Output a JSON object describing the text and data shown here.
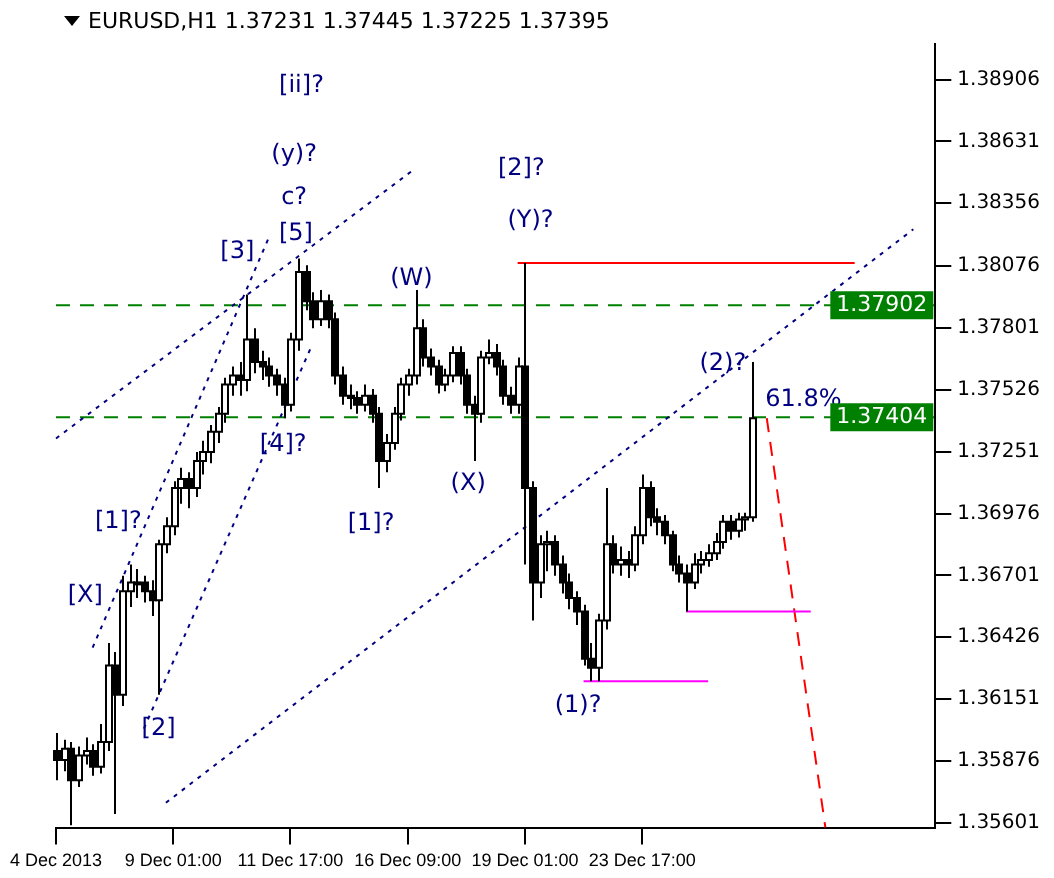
{
  "chart_data": {
    "type": "candlestick",
    "title": "EURUSD,H1 1.37231 1.37445 1.37225 1.37395",
    "categories": [
      "4 Dec 2013",
      null,
      null,
      null,
      null,
      null,
      null,
      null,
      null,
      null,
      null,
      null,
      null,
      null,
      null,
      null,
      "9 Dec 01:00",
      null,
      null,
      null,
      null,
      null,
      null,
      null,
      null,
      null,
      null,
      null,
      null,
      null,
      null,
      null,
      "11 Dec 17:00",
      null,
      null,
      null,
      null,
      null,
      null,
      null,
      null,
      null,
      null,
      null,
      null,
      null,
      null,
      null,
      "16 Dec 09:00",
      null,
      null,
      null,
      null,
      null,
      null,
      null,
      null,
      null,
      null,
      null,
      null,
      null,
      null,
      null,
      "19 Dec 01:00",
      null,
      null,
      null,
      null,
      null,
      null,
      null,
      null,
      null,
      null,
      null,
      null,
      null,
      null,
      null,
      "23 Dec 17:00",
      null,
      null,
      null,
      null,
      null,
      null,
      null,
      null,
      null,
      null,
      null,
      null,
      null,
      null,
      null,
      null,
      null,
      null,
      null,
      null,
      null,
      null,
      null,
      null,
      null,
      null,
      null,
      null,
      null,
      null,
      null,
      null,
      null,
      null,
      null,
      null,
      null,
      null,
      null,
      null
    ],
    "ohlc": [
      [
        1.3592,
        1.36,
        1.3579,
        1.3588
      ],
      [
        1.3588,
        1.3597,
        1.3583,
        1.3593
      ],
      [
        1.3593,
        1.3596,
        1.3559,
        1.3579
      ],
      [
        1.3579,
        1.3594,
        1.3576,
        1.359
      ],
      [
        1.359,
        1.3598,
        1.3586,
        1.3592
      ],
      [
        1.3592,
        1.3595,
        1.3581,
        1.3585
      ],
      [
        1.3585,
        1.3604,
        1.3582,
        1.3596
      ],
      [
        1.3596,
        1.364,
        1.3592,
        1.363
      ],
      [
        1.363,
        1.3636,
        1.3564,
        1.3617
      ],
      [
        1.3617,
        1.367,
        1.3612,
        1.3663
      ],
      [
        1.3663,
        1.3675,
        1.3656,
        1.3667
      ],
      [
        1.3667,
        1.3673,
        1.366,
        1.3667
      ],
      [
        1.3667,
        1.367,
        1.3658,
        1.3663
      ],
      [
        1.3663,
        1.3668,
        1.3652,
        1.3659
      ],
      [
        1.3659,
        1.3686,
        1.3617,
        1.3684
      ],
      [
        1.3684,
        1.3696,
        1.368,
        1.3692
      ],
      [
        1.3692,
        1.3712,
        1.3688,
        1.3709
      ],
      [
        1.3709,
        1.3718,
        1.3702,
        1.3713
      ],
      [
        1.3713,
        1.3716,
        1.37,
        1.3709
      ],
      [
        1.3709,
        1.3725,
        1.3705,
        1.3721
      ],
      [
        1.3721,
        1.373,
        1.3715,
        1.3725
      ],
      [
        1.3725,
        1.3737,
        1.372,
        1.3734
      ],
      [
        1.3734,
        1.3745,
        1.3729,
        1.3742
      ],
      [
        1.3742,
        1.3758,
        1.3738,
        1.3755
      ],
      [
        1.3755,
        1.3763,
        1.375,
        1.3759
      ],
      [
        1.3759,
        1.3765,
        1.375,
        1.3757
      ],
      [
        1.3757,
        1.3795,
        1.3752,
        1.3775
      ],
      [
        1.3775,
        1.378,
        1.376,
        1.3765
      ],
      [
        1.3765,
        1.377,
        1.3757,
        1.3763
      ],
      [
        1.3763,
        1.3767,
        1.3754,
        1.3759
      ],
      [
        1.3759,
        1.3762,
        1.375,
        1.3755
      ],
      [
        1.3755,
        1.3758,
        1.374,
        1.3746
      ],
      [
        1.3746,
        1.3778,
        1.3743,
        1.3775
      ],
      [
        1.3775,
        1.3811,
        1.377,
        1.3805
      ],
      [
        1.3805,
        1.3808,
        1.3788,
        1.3792
      ],
      [
        1.3792,
        1.3796,
        1.378,
        1.3784
      ],
      [
        1.3784,
        1.3797,
        1.3781,
        1.3792
      ],
      [
        1.3792,
        1.3795,
        1.378,
        1.3784
      ],
      [
        1.3784,
        1.3787,
        1.3755,
        1.3759
      ],
      [
        1.3759,
        1.3763,
        1.3746,
        1.375
      ],
      [
        1.375,
        1.3755,
        1.3744,
        1.3749
      ],
      [
        1.3749,
        1.3752,
        1.3742,
        1.3746
      ],
      [
        1.3746,
        1.3755,
        1.3743,
        1.375
      ],
      [
        1.375,
        1.3753,
        1.3738,
        1.3742
      ],
      [
        1.3742,
        1.3745,
        1.3709,
        1.3721
      ],
      [
        1.3721,
        1.3733,
        1.3716,
        1.3729
      ],
      [
        1.3729,
        1.3745,
        1.3726,
        1.3742
      ],
      [
        1.3742,
        1.3758,
        1.3739,
        1.3755
      ],
      [
        1.3755,
        1.3762,
        1.375,
        1.3759
      ],
      [
        1.3759,
        1.3797,
        1.3755,
        1.378
      ],
      [
        1.378,
        1.3784,
        1.3763,
        1.3767
      ],
      [
        1.3767,
        1.3771,
        1.3759,
        1.3763
      ],
      [
        1.3763,
        1.3766,
        1.3751,
        1.3755
      ],
      [
        1.3755,
        1.3762,
        1.3752,
        1.3759
      ],
      [
        1.3759,
        1.3772,
        1.3756,
        1.3769
      ],
      [
        1.3769,
        1.3772,
        1.3755,
        1.3759
      ],
      [
        1.3759,
        1.3762,
        1.3742,
        1.3746
      ],
      [
        1.3746,
        1.375,
        1.3721,
        1.3742
      ],
      [
        1.3742,
        1.377,
        1.3738,
        1.3767
      ],
      [
        1.3767,
        1.3775,
        1.3764,
        1.3769
      ],
      [
        1.3769,
        1.3773,
        1.3759,
        1.3763
      ],
      [
        1.3763,
        1.3766,
        1.3746,
        1.375
      ],
      [
        1.375,
        1.3754,
        1.3742,
        1.3746
      ],
      [
        1.3746,
        1.3767,
        1.3742,
        1.3763
      ],
      [
        1.3763,
        1.3809,
        1.3675,
        1.3709
      ],
      [
        1.3709,
        1.3712,
        1.365,
        1.3667
      ],
      [
        1.3667,
        1.3688,
        1.366,
        1.3684
      ],
      [
        1.3684,
        1.369,
        1.3672,
        1.3685
      ],
      [
        1.3685,
        1.3688,
        1.367,
        1.3675
      ],
      [
        1.3675,
        1.3679,
        1.3662,
        1.3667
      ],
      [
        1.3667,
        1.3671,
        1.3655,
        1.366
      ],
      [
        1.366,
        1.3663,
        1.3648,
        1.3654
      ],
      [
        1.3654,
        1.3657,
        1.363,
        1.3633
      ],
      [
        1.3633,
        1.364,
        1.3623,
        1.3629
      ],
      [
        1.3629,
        1.3653,
        1.3623,
        1.365
      ],
      [
        1.365,
        1.3709,
        1.3646,
        1.3684
      ],
      [
        1.3684,
        1.3688,
        1.3671,
        1.3675
      ],
      [
        1.3675,
        1.3683,
        1.367,
        1.3677
      ],
      [
        1.3677,
        1.3681,
        1.3669,
        1.3675
      ],
      [
        1.3675,
        1.3692,
        1.3672,
        1.3688
      ],
      [
        1.3688,
        1.3715,
        1.3684,
        1.3709
      ],
      [
        1.3709,
        1.3712,
        1.3692,
        1.3696
      ],
      [
        1.3696,
        1.37,
        1.3688,
        1.3694
      ],
      [
        1.3694,
        1.3697,
        1.3684,
        1.3688
      ],
      [
        1.3688,
        1.369,
        1.3672,
        1.3675
      ],
      [
        1.3675,
        1.3679,
        1.3667,
        1.3671
      ],
      [
        1.3671,
        1.3675,
        1.3654,
        1.3667
      ],
      [
        1.3667,
        1.368,
        1.3664,
        1.3675
      ],
      [
        1.3675,
        1.3681,
        1.3671,
        1.3677
      ],
      [
        1.3677,
        1.3684,
        1.3674,
        1.368
      ],
      [
        1.368,
        1.3689,
        1.3677,
        1.3685
      ],
      [
        1.3685,
        1.3697,
        1.3682,
        1.3694
      ],
      [
        1.3694,
        1.3697,
        1.3686,
        1.369
      ],
      [
        1.369,
        1.3698,
        1.3687,
        1.3695
      ],
      [
        1.3695,
        1.3698,
        1.369,
        1.3696
      ],
      [
        1.3696,
        1.3765,
        1.3694,
        1.374
      ],
      null,
      null,
      null,
      null,
      null,
      null,
      null,
      null,
      null,
      null,
      null,
      null,
      null,
      null,
      null,
      null,
      null,
      null,
      null,
      null,
      null,
      null,
      null,
      null,
      null
    ],
    "series": [
      {
        "type": "line",
        "color": "#ff0000",
        "line_style": "solid",
        "values": [
          null,
          null,
          null,
          null,
          null,
          null,
          null,
          null,
          null,
          null,
          null,
          null,
          null,
          null,
          null,
          null,
          null,
          null,
          null,
          null,
          null,
          null,
          null,
          null,
          null,
          null,
          null,
          null,
          null,
          null,
          null,
          null,
          null,
          null,
          null,
          null,
          null,
          null,
          null,
          null,
          null,
          null,
          null,
          null,
          null,
          null,
          null,
          null,
          null,
          null,
          null,
          null,
          null,
          null,
          null,
          null,
          null,
          null,
          null,
          null,
          null,
          null,
          null,
          1.3809,
          null,
          null,
          null,
          null,
          null,
          null,
          null,
          null,
          null,
          null,
          null,
          null,
          null,
          null,
          null,
          null,
          null,
          null,
          null,
          null,
          null,
          null,
          null,
          null,
          null,
          null,
          null,
          null,
          null,
          null,
          null,
          null,
          null,
          null,
          null,
          null,
          null,
          null,
          null,
          null,
          null,
          null,
          null,
          null,
          null,
          1.3809,
          null,
          null,
          null,
          null,
          null,
          null,
          null,
          null,
          null,
          null,
          null
        ]
      },
      {
        "type": "line",
        "color": "#ff00ff",
        "line_style": "solid",
        "values": [
          null,
          null,
          null,
          null,
          null,
          null,
          null,
          null,
          null,
          null,
          null,
          null,
          null,
          null,
          null,
          null,
          null,
          null,
          null,
          null,
          null,
          null,
          null,
          null,
          null,
          null,
          null,
          null,
          null,
          null,
          null,
          null,
          null,
          null,
          null,
          null,
          null,
          null,
          null,
          null,
          null,
          null,
          null,
          null,
          null,
          null,
          null,
          null,
          null,
          null,
          null,
          null,
          null,
          null,
          null,
          null,
          null,
          null,
          null,
          null,
          null,
          null,
          null,
          null,
          null,
          null,
          null,
          null,
          null,
          null,
          null,
          null,
          1.3623,
          null,
          null,
          null,
          null,
          null,
          null,
          null,
          null,
          null,
          null,
          null,
          null,
          null,
          null,
          null,
          null,
          1.3623,
          null,
          null,
          null,
          null,
          null,
          null,
          null,
          null,
          null,
          null,
          null,
          null,
          null,
          null,
          null,
          null,
          null,
          null,
          null,
          null,
          null,
          null,
          null,
          null,
          null,
          null,
          null,
          null,
          null,
          null,
          null
        ]
      },
      {
        "type": "line",
        "color": "#ff00ff",
        "line_style": "solid",
        "values": [
          null,
          null,
          null,
          null,
          null,
          null,
          null,
          null,
          null,
          null,
          null,
          null,
          null,
          null,
          null,
          null,
          null,
          null,
          null,
          null,
          null,
          null,
          null,
          null,
          null,
          null,
          null,
          null,
          null,
          null,
          null,
          null,
          null,
          null,
          null,
          null,
          null,
          null,
          null,
          null,
          null,
          null,
          null,
          null,
          null,
          null,
          null,
          null,
          null,
          null,
          null,
          null,
          null,
          null,
          null,
          null,
          null,
          null,
          null,
          null,
          null,
          null,
          null,
          null,
          null,
          null,
          null,
          null,
          null,
          null,
          null,
          null,
          null,
          null,
          null,
          null,
          null,
          null,
          null,
          null,
          null,
          null,
          null,
          null,
          null,
          null,
          1.3654,
          null,
          null,
          null,
          null,
          null,
          null,
          null,
          null,
          null,
          null,
          null,
          null,
          null,
          null,
          null,
          null,
          1.3654,
          null,
          null,
          null,
          null,
          null,
          null,
          null,
          null,
          null,
          null,
          null,
          null,
          null,
          null,
          null,
          null,
          null
        ]
      },
      {
        "type": "line",
        "color": "#ff0000",
        "line_style": "dashed",
        "values": [
          null,
          null,
          null,
          null,
          null,
          null,
          null,
          null,
          null,
          null,
          null,
          null,
          null,
          null,
          null,
          null,
          null,
          null,
          null,
          null,
          null,
          null,
          null,
          null,
          null,
          null,
          null,
          null,
          null,
          null,
          null,
          null,
          null,
          null,
          null,
          null,
          null,
          null,
          null,
          null,
          null,
          null,
          null,
          null,
          null,
          null,
          null,
          null,
          null,
          null,
          null,
          null,
          null,
          null,
          null,
          null,
          null,
          null,
          null,
          null,
          null,
          null,
          null,
          null,
          null,
          null,
          null,
          null,
          null,
          null,
          null,
          null,
          null,
          null,
          null,
          null,
          null,
          null,
          null,
          null,
          null,
          null,
          null,
          null,
          null,
          null,
          null,
          null,
          null,
          null,
          null,
          null,
          null,
          null,
          null,
          null,
          null,
          1.374,
          null,
          null,
          null,
          null,
          null,
          null,
          null,
          1.3558,
          null,
          null,
          null,
          null,
          null,
          null,
          null,
          null,
          null,
          null,
          null,
          null,
          null,
          null,
          null
        ]
      },
      {
        "type": "line",
        "color": "#000080",
        "line_style": "dotted",
        "values": [
          null,
          null,
          null,
          null,
          null,
          null,
          null,
          null,
          null,
          null,
          null,
          null,
          null,
          null,
          null,
          1.3569,
          null,
          null,
          null,
          null,
          null,
          null,
          null,
          null,
          null,
          null,
          null,
          null,
          null,
          null,
          null,
          null,
          null,
          null,
          null,
          null,
          null,
          null,
          null,
          null,
          null,
          null,
          null,
          null,
          null,
          null,
          null,
          null,
          null,
          null,
          null,
          null,
          null,
          null,
          null,
          null,
          null,
          null,
          null,
          null,
          null,
          null,
          null,
          null,
          null,
          null,
          null,
          null,
          null,
          null,
          null,
          null,
          null,
          null,
          null,
          null,
          null,
          null,
          null,
          null,
          null,
          null,
          null,
          null,
          null,
          null,
          null,
          null,
          null,
          null,
          null,
          null,
          null,
          null,
          null,
          null,
          null,
          null,
          null,
          null,
          null,
          null,
          null,
          null,
          null,
          null,
          null,
          null,
          null,
          null,
          null,
          null,
          null,
          null,
          null,
          null,
          null,
          1.3824,
          null,
          null,
          null
        ]
      },
      {
        "type": "line",
        "color": "#000080",
        "line_style": "dotted",
        "values": [
          1.3731,
          null,
          null,
          null,
          null,
          null,
          null,
          null,
          null,
          null,
          null,
          null,
          null,
          null,
          null,
          null,
          null,
          null,
          null,
          null,
          null,
          null,
          null,
          null,
          null,
          null,
          null,
          null,
          null,
          null,
          null,
          null,
          null,
          null,
          null,
          null,
          null,
          null,
          null,
          null,
          null,
          null,
          null,
          null,
          null,
          null,
          null,
          null,
          null,
          1.3851,
          null,
          null,
          null,
          null,
          null,
          null,
          null,
          null,
          null,
          null,
          null,
          null,
          null,
          null,
          null,
          null,
          null,
          null,
          null,
          null,
          null,
          null,
          null,
          null,
          null,
          null,
          null,
          null,
          null,
          null,
          null,
          null,
          null,
          null,
          null,
          null,
          null,
          null,
          null,
          null,
          null,
          null,
          null,
          null,
          null,
          null,
          null,
          null,
          null,
          null,
          null,
          null,
          null,
          null,
          null,
          null,
          null,
          null,
          null,
          null,
          null,
          null,
          null,
          null,
          null,
          null,
          null,
          null,
          null,
          null,
          null
        ]
      },
      {
        "type": "line",
        "color": "#000080",
        "line_style": "dotted",
        "values": [
          null,
          null,
          null,
          null,
          null,
          1.3638,
          null,
          null,
          null,
          null,
          null,
          null,
          null,
          null,
          null,
          null,
          null,
          null,
          null,
          null,
          null,
          null,
          null,
          null,
          null,
          null,
          null,
          null,
          null,
          1.382,
          null,
          null,
          null,
          null,
          null,
          null,
          null,
          null,
          null,
          null,
          null,
          null,
          null,
          null,
          null,
          null,
          null,
          null,
          null,
          null,
          null,
          null,
          null,
          null,
          null,
          null,
          null,
          null,
          null,
          null,
          null,
          null,
          null,
          null,
          null,
          null,
          null,
          null,
          null,
          null,
          null,
          null,
          null,
          null,
          null,
          null,
          null,
          null,
          null,
          null,
          null,
          null,
          null,
          null,
          null,
          null,
          null,
          null,
          null,
          null,
          null,
          null,
          null,
          null,
          null,
          null,
          null,
          null,
          null,
          null,
          null,
          null,
          null,
          null,
          null,
          null,
          null,
          null,
          null,
          null,
          null,
          null,
          null,
          null,
          null,
          null,
          null,
          null,
          null,
          null,
          null
        ]
      },
      {
        "type": "line",
        "color": "#000080",
        "line_style": "dotted",
        "values": [
          null,
          null,
          null,
          null,
          null,
          null,
          null,
          null,
          null,
          null,
          null,
          null,
          1.3602,
          null,
          null,
          null,
          null,
          null,
          null,
          null,
          null,
          null,
          null,
          null,
          null,
          null,
          null,
          null,
          null,
          null,
          null,
          null,
          null,
          null,
          null,
          1.3773,
          null,
          null,
          null,
          null,
          null,
          null,
          null,
          null,
          null,
          null,
          null,
          null,
          null,
          null,
          null,
          null,
          null,
          null,
          null,
          null,
          null,
          null,
          null,
          null,
          null,
          null,
          null,
          null,
          null,
          null,
          null,
          null,
          null,
          null,
          null,
          null,
          null,
          null,
          null,
          null,
          null,
          null,
          null,
          null,
          null,
          null,
          null,
          null,
          null,
          null,
          null,
          null,
          null,
          null,
          null,
          null,
          null,
          null,
          null,
          null,
          null,
          null,
          null,
          null,
          null,
          null,
          null,
          null,
          null,
          null,
          null,
          null,
          null,
          null,
          null,
          null,
          null,
          null,
          null,
          null,
          null,
          null,
          null,
          null,
          null
        ]
      }
    ],
    "ref_lines": [
      {
        "axis": "y",
        "value": 1.37902,
        "label": "1.37902",
        "color": "#008000",
        "line_style": "dashed"
      },
      {
        "axis": "y",
        "value": 1.37404,
        "label": "1.37404",
        "color": "#008000",
        "line_style": "dashed"
      }
    ],
    "annotations": [
      "[ii]?",
      "(y)?",
      "c?",
      "[5]",
      "[3]",
      "[2]?",
      "(Y)?",
      "(W)",
      "[4]?",
      "[1]?",
      "[X]",
      "[2]",
      "[1]?",
      "(X)",
      "(1)?",
      "(2)?",
      "61.8%"
    ],
    "ylim": [
      1.35576,
      1.39064
    ],
    "yticks": [
      1.35601,
      1.35876,
      1.36151,
      1.36426,
      1.36701,
      1.36976,
      1.37251,
      1.37526,
      1.37801,
      1.38076,
      1.38356,
      1.38631,
      1.38906
    ],
    "grid": false,
    "legend": false,
    "marker": "none"
  }
}
